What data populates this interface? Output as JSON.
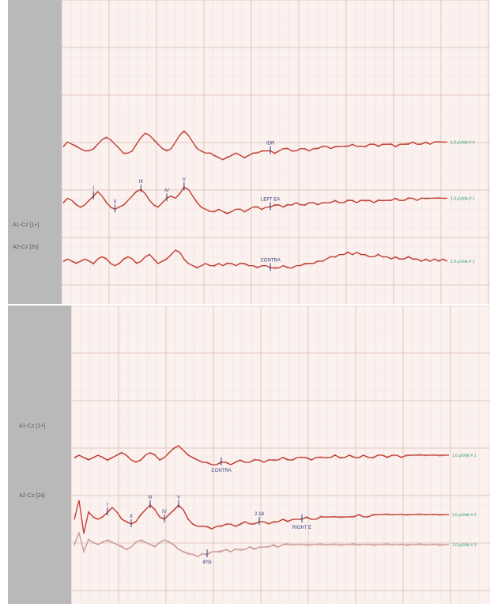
{
  "chart_data": [
    {
      "type": "line",
      "title": "",
      "grid": true,
      "channel_labels": [
        "A1-Cz [1+]",
        "A2-Cz [2s]"
      ],
      "traces": [
        {
          "row": 1,
          "label": "IDR",
          "color": "#c0392b",
          "values": [
            0,
            0.2,
            0.1,
            0.0,
            -0.1,
            -0.2,
            -0.2,
            -0.1,
            0.1,
            0.3,
            0.4,
            0.3,
            0.1,
            -0.1,
            -0.3,
            -0.3,
            -0.2,
            0.1,
            0.4,
            0.6,
            0.5,
            0.3,
            0.1,
            -0.1,
            -0.2,
            -0.1,
            0.2,
            0.5,
            0.7,
            0.5,
            0.2,
            -0.1,
            -0.2,
            -0.3,
            -0.3,
            -0.4,
            -0.5,
            -0.6,
            -0.5,
            -0.4,
            -0.3,
            -0.4,
            -0.5,
            -0.4,
            -0.3,
            -0.3,
            -0.2,
            -0.2,
            -0.2,
            -0.3,
            -0.2,
            -0.1,
            -0.1,
            -0.2,
            -0.2,
            -0.1,
            -0.1,
            -0.2,
            -0.1,
            -0.1,
            0.0,
            0.0,
            -0.1,
            0.0,
            0.0,
            0.0,
            0.0,
            0.1,
            0.0,
            0.0,
            0.0,
            0.1,
            0.1,
            0.0,
            0.1,
            0.1,
            0.1,
            0.0,
            0.1,
            0.1,
            0.1,
            0.2,
            0.1,
            0.1,
            0.2,
            0.1,
            0.2,
            0.2,
            0.2,
            0.2
          ],
          "markers": [
            {
              "label": "IDR",
              "index": 48
            }
          ],
          "right_label": "1.0 µV/div  # 4"
        },
        {
          "row": 2,
          "label": "LEFT EA",
          "color": "#c0392b",
          "values": [
            0,
            0.2,
            0.1,
            -0.1,
            -0.2,
            -0.1,
            0.1,
            0.3,
            0.5,
            0.3,
            0.0,
            -0.2,
            -0.3,
            -0.2,
            -0.1,
            0.1,
            0.3,
            0.5,
            0.6,
            0.4,
            0.1,
            -0.1,
            -0.2,
            0.0,
            0.2,
            0.3,
            0.2,
            0.4,
            0.7,
            0.6,
            0.3,
            0.0,
            -0.2,
            -0.3,
            -0.4,
            -0.4,
            -0.3,
            -0.4,
            -0.5,
            -0.4,
            -0.3,
            -0.3,
            -0.4,
            -0.3,
            -0.2,
            -0.2,
            -0.3,
            -0.2,
            -0.2,
            -0.1,
            -0.1,
            -0.2,
            -0.1,
            -0.1,
            0.0,
            -0.1,
            -0.1,
            0.0,
            0.0,
            -0.1,
            0.0,
            0.0,
            0.0,
            0.1,
            0.0,
            0.0,
            0.1,
            0.1,
            0.0,
            0.1,
            0.1,
            0.1,
            0.0,
            0.1,
            0.1,
            0.1,
            0.1,
            0.2,
            0.1,
            0.1,
            0.2,
            0.2,
            0.1,
            0.2,
            0.2,
            0.2,
            0.2,
            0.2,
            0.2,
            0.2
          ],
          "markers": [
            {
              "label": "I",
              "index": 7
            },
            {
              "label": "II",
              "index": 12
            },
            {
              "label": "III",
              "index": 18
            },
            {
              "label": "IV",
              "index": 24
            },
            {
              "label": "V",
              "index": 28
            },
            {
              "label": "LEFT EA",
              "index": 48
            }
          ],
          "right_label": "1.0 µV/div  # 1"
        },
        {
          "row": 3,
          "label": "CONTRA",
          "color": "#c0392b",
          "values": [
            0,
            0.1,
            0.0,
            -0.1,
            0.0,
            0.1,
            0.0,
            -0.1,
            0.1,
            0.2,
            0.1,
            -0.1,
            -0.2,
            -0.1,
            0.1,
            0.2,
            0.1,
            -0.1,
            0.0,
            0.2,
            0.3,
            0.1,
            -0.1,
            0.0,
            0.1,
            0.3,
            0.5,
            0.4,
            0.1,
            -0.1,
            -0.2,
            -0.3,
            -0.2,
            -0.1,
            -0.2,
            -0.2,
            -0.1,
            -0.2,
            -0.1,
            -0.1,
            -0.2,
            -0.1,
            -0.1,
            -0.2,
            -0.2,
            -0.3,
            -0.2,
            -0.2,
            -0.3,
            -0.3,
            -0.3,
            -0.2,
            -0.3,
            -0.3,
            -0.2,
            -0.2,
            -0.1,
            -0.1,
            -0.1,
            0.0,
            0.0,
            0.1,
            0.2,
            0.2,
            0.3,
            0.3,
            0.4,
            0.3,
            0.4,
            0.3,
            0.3,
            0.2,
            0.2,
            0.3,
            0.2,
            0.2,
            0.1,
            0.2,
            0.1,
            0.1,
            0.2,
            0.1,
            0.1,
            0.0,
            0.1,
            0.0,
            0.1,
            0.0,
            0.1,
            0.0
          ],
          "markers": [
            {
              "label": "CONTRA",
              "index": 48
            }
          ],
          "right_label": "1.0 µV/div  # 1"
        }
      ]
    },
    {
      "type": "line",
      "title": "",
      "grid": true,
      "channel_labels": [
        "A1-Cz [1+]",
        "A2-Cz [2s]"
      ],
      "traces": [
        {
          "row": 1,
          "label": "CONTRA",
          "color": "#c0392b",
          "values": [
            0,
            0.1,
            0.0,
            -0.1,
            0.0,
            0.1,
            0.0,
            -0.1,
            0.0,
            0.1,
            0.2,
            0.1,
            -0.1,
            -0.2,
            -0.1,
            0.1,
            0.2,
            0.1,
            -0.1,
            0.0,
            0.2,
            0.4,
            0.5,
            0.3,
            0.1,
            0.0,
            -0.1,
            -0.2,
            -0.2,
            -0.3,
            -0.3,
            -0.2,
            -0.2,
            -0.3,
            -0.2,
            -0.1,
            -0.2,
            -0.2,
            -0.1,
            -0.1,
            -0.2,
            -0.1,
            -0.1,
            -0.1,
            0.0,
            -0.1,
            -0.1,
            0.0,
            0.0,
            0.0,
            -0.1,
            0.0,
            0.0,
            0.0,
            0.0,
            0.1,
            0.0,
            0.0,
            0.1,
            0.0,
            0.0,
            0.1,
            0.0,
            0.0,
            0.1,
            0.1,
            0.0,
            0.1,
            0.1,
            0.0,
            0.1,
            0.1,
            0.1,
            0.1,
            0.1,
            0.1,
            0.1,
            0.1,
            0.1,
            0.1
          ],
          "markers": [
            {
              "label": "CONTRA",
              "index": 31
            }
          ],
          "right_label": "1.0 µV/div  # 1"
        },
        {
          "row": 2,
          "label": "RIGHT E",
          "color": "#c0392b",
          "values": [
            0,
            0.8,
            -0.6,
            0.3,
            0.1,
            0.0,
            0.1,
            0.3,
            0.5,
            0.3,
            0.0,
            -0.1,
            -0.2,
            -0.1,
            0.2,
            0.4,
            0.6,
            0.4,
            0.1,
            0.0,
            0.2,
            0.4,
            0.6,
            0.4,
            0.0,
            -0.2,
            -0.3,
            -0.3,
            -0.3,
            -0.4,
            -0.3,
            -0.3,
            -0.2,
            -0.2,
            -0.3,
            -0.2,
            -0.1,
            -0.2,
            -0.2,
            -0.1,
            -0.1,
            -0.2,
            -0.1,
            -0.1,
            0.0,
            -0.1,
            0.0,
            0.0,
            0.0,
            0.1,
            0.0,
            0.0,
            0.1,
            0.1,
            0.1,
            0.1,
            0.1,
            0.1,
            0.1,
            0.1,
            0.2,
            0.1,
            0.1,
            0.2,
            0.2,
            0.2,
            0.2,
            0.2,
            0.2,
            0.2,
            0.2,
            0.2,
            0.2,
            0.2,
            0.2,
            0.2,
            0.2,
            0.2,
            0.2,
            0.2
          ],
          "markers": [
            {
              "label": "I",
              "index": 7
            },
            {
              "label": "II",
              "index": 12
            },
            {
              "label": "III",
              "index": 16
            },
            {
              "label": "IV",
              "index": 19
            },
            {
              "label": "V",
              "index": 22
            },
            {
              "label": "2.18",
              "index": 39
            },
            {
              "label": "RIGHT E",
              "index": 48
            }
          ],
          "right_label": "1.0 µV/div  # 2"
        },
        {
          "row": 3,
          "label": "IPSI",
          "color": "#c99a96",
          "values": [
            0,
            0.5,
            -0.3,
            0.2,
            0.1,
            0.0,
            0.1,
            0.2,
            0.1,
            0.0,
            -0.1,
            -0.2,
            -0.1,
            0.1,
            0.2,
            0.1,
            0.0,
            -0.1,
            0.1,
            0.2,
            0.1,
            0.0,
            -0.2,
            -0.3,
            -0.4,
            -0.4,
            -0.5,
            -0.4,
            -0.4,
            -0.3,
            -0.3,
            -0.3,
            -0.2,
            -0.3,
            -0.2,
            -0.2,
            -0.2,
            -0.1,
            -0.2,
            -0.1,
            -0.1,
            -0.1,
            0.0,
            -0.1,
            0.0,
            0.0,
            0.0,
            0.0,
            0.0,
            0.0,
            0.0,
            0.0,
            0.0,
            0.0,
            0.0,
            0.0,
            0.0,
            0.0,
            0.0,
            0.0,
            0.0,
            0.0,
            0.0,
            0.0,
            0.0,
            0.0,
            0.0,
            0.0,
            0.0,
            0.0,
            0.0,
            0.0,
            0.0,
            0.0,
            0.0,
            0.0,
            0.0,
            0.0,
            0.0,
            0.0
          ],
          "markers": [
            {
              "label": "IPSI",
              "index": 28
            }
          ],
          "right_label": "1.0 µV/div  # 3"
        }
      ]
    }
  ]
}
